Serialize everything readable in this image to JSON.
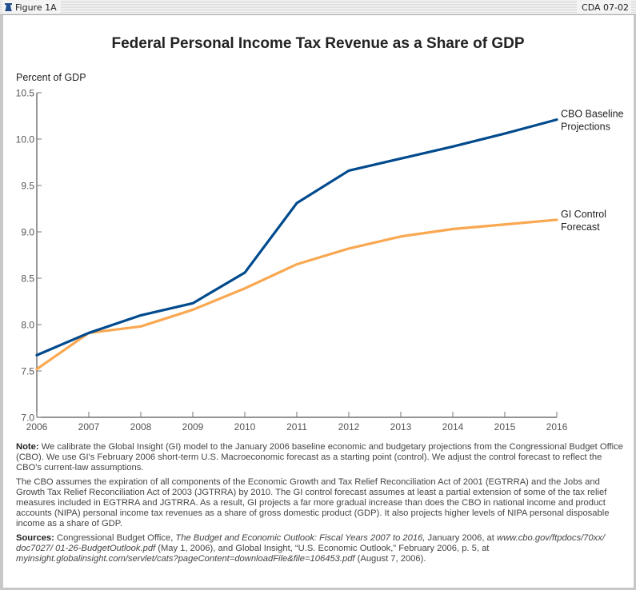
{
  "header": {
    "figure_label": "Figure 1A",
    "figure_icon": "liberty-bell-icon",
    "code": "CDA 07-02"
  },
  "chart_data": {
    "type": "line",
    "title": "Federal Personal Income Tax Revenue as a Share of GDP",
    "xlabel": "",
    "ylabel": "Percent of GDP",
    "x": [
      2006,
      2007,
      2008,
      2009,
      2010,
      2011,
      2012,
      2013,
      2014,
      2015,
      2016
    ],
    "xticks": [
      "2006",
      "2007",
      "2008",
      "2009",
      "2010",
      "2011",
      "2012",
      "2013",
      "2014",
      "2015",
      "2016"
    ],
    "ylim": [
      7.0,
      10.5
    ],
    "yticks": [
      "7.0",
      "7.5",
      "8.0",
      "8.5",
      "9.0",
      "9.5",
      "10.0",
      "10.5"
    ],
    "grid": false,
    "legend": "direct labels at right end of lines",
    "series": [
      {
        "name": "CBO Baseline Projections",
        "label_lines": [
          "CBO Baseline",
          "Projections"
        ],
        "color": "#004a8d",
        "values": [
          7.67,
          7.91,
          8.1,
          8.23,
          8.56,
          9.31,
          9.66,
          9.79,
          9.92,
          10.06,
          10.21
        ]
      },
      {
        "name": "GI Control Forecast",
        "label_lines": [
          "GI Control",
          "Forecast"
        ],
        "color": "#f9a851",
        "values": [
          7.52,
          7.91,
          7.98,
          8.16,
          8.39,
          8.65,
          8.82,
          8.95,
          9.03,
          9.08,
          9.13
        ]
      }
    ]
  },
  "notes": {
    "note_label": "Note:",
    "note_text": " We calibrate the Global Insight (GI) model to the January 2006 baseline economic and budgetary projections from the Congressional Budget Office (CBO). We use GI's February 2006 short-term U.S. Macroeconomic forecast as a starting point (control). We adjust the control forecast to reflect the CBO's current-law assumptions.",
    "paragraph2": "The CBO assumes the expiration of all components of the Economic Growth and Tax Relief Reconciliation Act of 2001 (EGTRRA) and the Jobs and Growth Tax Relief Reconciliation Act of 2003 (JGTRRA) by 2010. The GI control forecast assumes at least a partial extension of some of the tax relief measures included in EGTRRA and JGTRRA. As a result, GI projects a far more gradual increase than does the CBO in national income and product accounts (NIPA) personal income tax revenues as a share of gross domestic product (GDP). It also projects higher levels of NIPA personal disposable income as a share of GDP.",
    "sources_label": "Sources:",
    "sources_1": " Congressional Budget Office, ",
    "sources_2_italic": "The Budget and Economic Outlook: Fiscal Years 2007 to 2016,",
    "sources_3": " January 2006, at ",
    "sources_4_italic": "www.cbo.gov/ftpdocs/70xx/ doc7027/ 01-26-BudgetOutlook.pdf",
    "sources_5": " (May 1, 2006),  and Global Insight, “U.S. Economic Outlook,” February 2006, p. 5, at ",
    "sources_6_italic": "myinsight.globalinsight.com/servlet/cats?pageContent=downloadFile&file=106453.pdf",
    "sources_7": " (August 7, 2006)."
  }
}
